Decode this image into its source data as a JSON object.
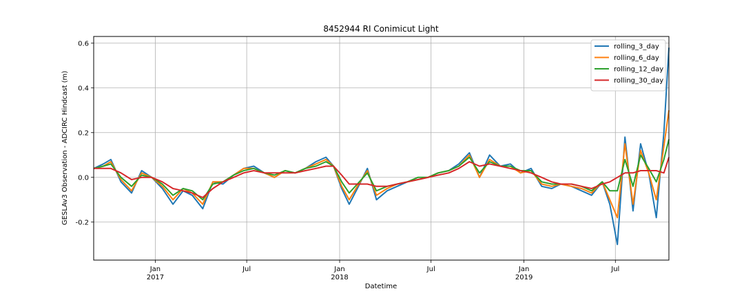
{
  "chart_data": {
    "type": "line",
    "title": "8452944 RI Conimicut Light",
    "xlabel": "Datetime",
    "ylabel": "GESLAv3 Observation - ADCIRC Hindcast (m)",
    "xlim": [
      "2016-09-01",
      "2019-10-15"
    ],
    "ylim": [
      -0.37,
      0.63
    ],
    "grid": true,
    "legend_position": "top-right",
    "y_ticks": [
      "-0.2",
      "0.0",
      "0.2",
      "0.4",
      "0.6"
    ],
    "x_ticks": [
      {
        "date": "2017-01-01",
        "label": "Jan",
        "sublabel": "2017"
      },
      {
        "date": "2017-07-01",
        "label": "Jul",
        "sublabel": ""
      },
      {
        "date": "2018-01-01",
        "label": "Jan",
        "sublabel": "2018"
      },
      {
        "date": "2018-07-01",
        "label": "Jul",
        "sublabel": ""
      },
      {
        "date": "2019-01-01",
        "label": "Jan",
        "sublabel": "2019"
      },
      {
        "date": "2019-07-01",
        "label": "Jul",
        "sublabel": ""
      }
    ],
    "x": [
      "2016-09-01",
      "2016-09-20",
      "2016-10-05",
      "2016-10-25",
      "2016-11-15",
      "2016-12-05",
      "2016-12-25",
      "2017-01-15",
      "2017-02-05",
      "2017-02-25",
      "2017-03-15",
      "2017-04-05",
      "2017-04-25",
      "2017-05-15",
      "2017-06-05",
      "2017-06-25",
      "2017-07-15",
      "2017-08-05",
      "2017-08-25",
      "2017-09-15",
      "2017-10-05",
      "2017-10-25",
      "2017-11-15",
      "2017-12-05",
      "2017-12-20",
      "2018-01-05",
      "2018-01-20",
      "2018-02-05",
      "2018-02-25",
      "2018-03-15",
      "2018-04-05",
      "2018-04-25",
      "2018-05-15",
      "2018-06-05",
      "2018-06-25",
      "2018-07-15",
      "2018-08-05",
      "2018-08-25",
      "2018-09-15",
      "2018-10-05",
      "2018-10-25",
      "2018-11-15",
      "2018-12-05",
      "2018-12-25",
      "2019-01-15",
      "2019-02-05",
      "2019-02-25",
      "2019-03-15",
      "2019-04-05",
      "2019-04-25",
      "2019-05-15",
      "2019-06-05",
      "2019-06-20",
      "2019-07-05",
      "2019-07-20",
      "2019-08-05",
      "2019-08-20",
      "2019-09-05",
      "2019-09-20",
      "2019-10-05",
      "2019-10-15"
    ],
    "series": [
      {
        "name": "rolling_3_day",
        "color": "#1f77b4",
        "width": 2.0,
        "values": [
          0.04,
          0.06,
          0.08,
          -0.02,
          -0.07,
          0.03,
          0.0,
          -0.05,
          -0.12,
          -0.06,
          -0.08,
          -0.14,
          -0.02,
          -0.03,
          0.01,
          0.04,
          0.05,
          0.02,
          0.0,
          0.03,
          0.02,
          0.04,
          0.07,
          0.09,
          0.05,
          -0.05,
          -0.12,
          -0.05,
          0.04,
          -0.1,
          -0.06,
          -0.04,
          -0.02,
          -0.01,
          0.0,
          0.02,
          0.03,
          0.06,
          0.11,
          0.0,
          0.1,
          0.05,
          0.06,
          0.02,
          0.04,
          -0.04,
          -0.05,
          -0.03,
          -0.04,
          -0.06,
          -0.08,
          -0.02,
          -0.12,
          -0.3,
          0.18,
          -0.15,
          0.15,
          0.02,
          -0.18,
          0.2,
          0.58
        ]
      },
      {
        "name": "rolling_6_day",
        "color": "#ff7f0e",
        "width": 2.0,
        "values": [
          0.04,
          0.05,
          0.07,
          -0.01,
          -0.06,
          0.02,
          0.0,
          -0.04,
          -0.1,
          -0.05,
          -0.07,
          -0.12,
          -0.02,
          -0.02,
          0.01,
          0.04,
          0.04,
          0.02,
          0.0,
          0.03,
          0.02,
          0.04,
          0.06,
          0.08,
          0.05,
          -0.04,
          -0.1,
          -0.04,
          0.03,
          -0.08,
          -0.05,
          -0.03,
          -0.02,
          -0.01,
          0.0,
          0.02,
          0.03,
          0.05,
          0.1,
          0.0,
          0.08,
          0.05,
          0.05,
          0.02,
          0.03,
          -0.03,
          -0.04,
          -0.03,
          -0.04,
          -0.05,
          -0.07,
          -0.02,
          -0.1,
          -0.18,
          0.15,
          -0.12,
          0.12,
          0.02,
          -0.1,
          0.14,
          0.3
        ]
      },
      {
        "name": "rolling_12_day",
        "color": "#2ca02c",
        "width": 2.0,
        "values": [
          0.04,
          0.05,
          0.06,
          0.0,
          -0.04,
          0.01,
          0.0,
          -0.03,
          -0.08,
          -0.05,
          -0.06,
          -0.1,
          -0.03,
          -0.02,
          0.01,
          0.03,
          0.04,
          0.02,
          0.01,
          0.03,
          0.02,
          0.04,
          0.05,
          0.07,
          0.05,
          -0.02,
          -0.07,
          -0.03,
          0.02,
          -0.06,
          -0.04,
          -0.03,
          -0.02,
          0.0,
          0.0,
          0.02,
          0.03,
          0.05,
          0.09,
          0.02,
          0.07,
          0.05,
          0.05,
          0.03,
          0.03,
          -0.02,
          -0.03,
          -0.03,
          -0.03,
          -0.04,
          -0.06,
          -0.02,
          -0.06,
          -0.06,
          0.08,
          -0.04,
          0.1,
          0.04,
          -0.02,
          0.08,
          0.17
        ]
      },
      {
        "name": "rolling_30_day",
        "color": "#d62728",
        "width": 2.0,
        "values": [
          0.04,
          0.04,
          0.04,
          0.02,
          -0.01,
          0.0,
          0.0,
          -0.02,
          -0.05,
          -0.06,
          -0.07,
          -0.09,
          -0.05,
          -0.02,
          0.0,
          0.02,
          0.03,
          0.02,
          0.02,
          0.02,
          0.02,
          0.03,
          0.04,
          0.05,
          0.05,
          0.01,
          -0.03,
          -0.03,
          -0.03,
          -0.04,
          -0.04,
          -0.03,
          -0.02,
          -0.01,
          0.0,
          0.01,
          0.02,
          0.04,
          0.07,
          0.05,
          0.06,
          0.05,
          0.04,
          0.03,
          0.02,
          0.0,
          -0.02,
          -0.03,
          -0.03,
          -0.04,
          -0.05,
          -0.03,
          -0.02,
          0.0,
          0.02,
          0.02,
          0.03,
          0.03,
          0.03,
          0.02,
          0.09
        ]
      }
    ]
  }
}
